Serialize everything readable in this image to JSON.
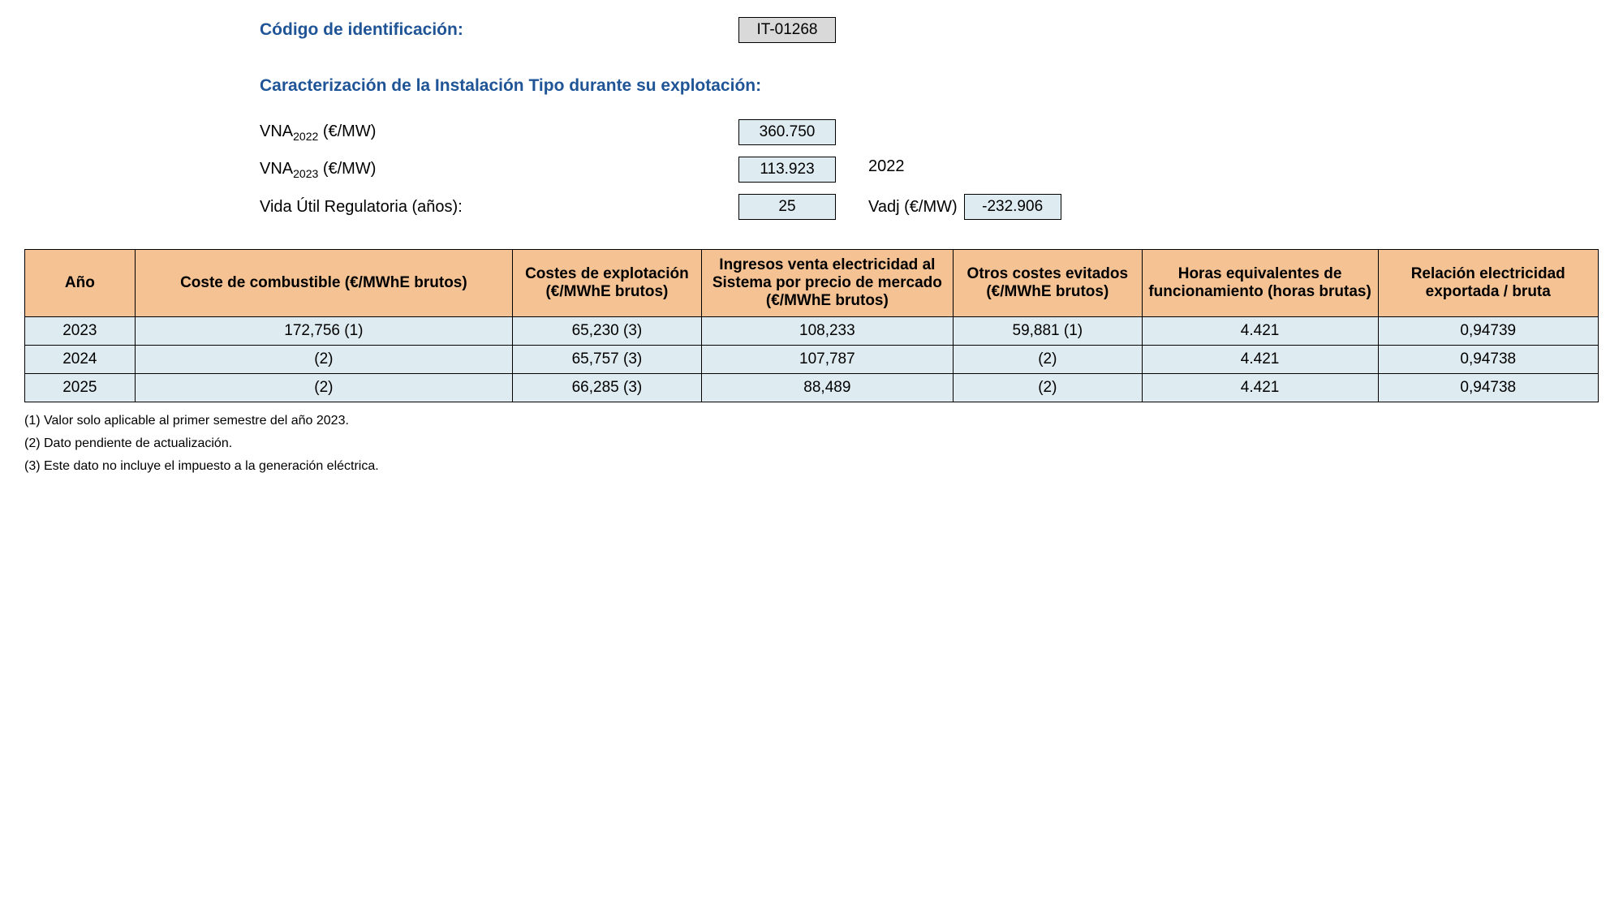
{
  "colors": {
    "heading_text": "#1f5496",
    "box_gray_bg": "#d9d9d9",
    "box_blue_bg": "#deebf1",
    "table_header_bg": "#f5c294",
    "table_cell_bg": "#deebf1",
    "border": "#000000",
    "body_text": "#000000"
  },
  "top": {
    "id_label": "Código de identificación:",
    "id_value": "IT-01268",
    "section_title": "Caracterización de la Instalación Tipo durante su explotación:",
    "vna2022_label_pre": "VNA",
    "vna2022_sub": "2022",
    "vna_unit": " (€/MW)",
    "vna2022_value": "360.750",
    "vna2023_label_pre": "VNA",
    "vna2023_sub": "2023",
    "vna2023_value": "113.923",
    "vida_label": "Vida Útil Regulatoria (años):",
    "vida_value": "25",
    "side_year": "2022",
    "vadj_label": "Vadj (€/MW)",
    "vadj_value": "-232.906"
  },
  "table": {
    "type": "table",
    "headers": {
      "ano": "Año",
      "coste_combustible": "Coste de combustible (€/MWhE brutos)",
      "costes_explotacion": "Costes de explotación (€/MWhE brutos)",
      "ingresos": "Ingresos venta electricidad al Sistema por precio de mercado (€/MWhE brutos)",
      "otros_costes": "Otros costes evitados (€/MWhE brutos)",
      "horas": "Horas equivalentes de funcionamiento (horas brutas)",
      "relacion": "Relación electricidad exportada / bruta"
    },
    "col_widths_pct": [
      7,
      24,
      12,
      16,
      12,
      15,
      14
    ],
    "rows": [
      {
        "ano": "2023",
        "coste_combustible": "172,756 (1)",
        "costes_explotacion": "65,230 (3)",
        "ingresos": "108,233",
        "otros_costes": "59,881 (1)",
        "horas": "4.421",
        "relacion": "0,94739"
      },
      {
        "ano": "2024",
        "coste_combustible": "(2)",
        "costes_explotacion": "65,757 (3)",
        "ingresos": "107,787",
        "otros_costes": "(2)",
        "horas": "4.421",
        "relacion": "0,94738"
      },
      {
        "ano": "2025",
        "coste_combustible": "(2)",
        "costes_explotacion": "66,285 (3)",
        "ingresos": "88,489",
        "otros_costes": "(2)",
        "horas": "4.421",
        "relacion": "0,94738"
      }
    ]
  },
  "footnotes": {
    "n1": "(1) Valor solo aplicable al primer semestre del año 2023.",
    "n2": "(2) Dato pendiente de actualización.",
    "n3": "(3) Este dato no incluye el impuesto a la generación eléctrica."
  }
}
